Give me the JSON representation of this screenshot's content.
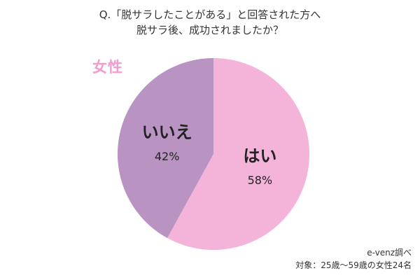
{
  "header": {
    "line1": "Q.「脱サラしたことがある」と回答された方へ",
    "line2": "脱サラ後、成功されましたか？"
  },
  "subject": {
    "label": "女性",
    "color": "#f29ccf"
  },
  "chart_data": {
    "type": "pie",
    "slices": [
      {
        "label": "はい",
        "value": 58,
        "display": "58%",
        "color": "#f4b3d9"
      },
      {
        "label": "いいえ",
        "value": 42,
        "display": "42%",
        "color": "#b993c1"
      }
    ]
  },
  "footer": {
    "source": "e-venz調べ",
    "note": "対象：25歳〜59歳の女性24名"
  }
}
